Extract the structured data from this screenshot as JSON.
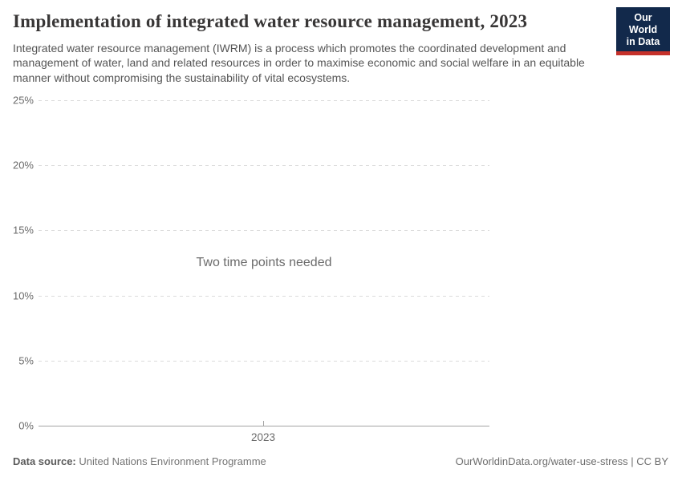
{
  "header": {
    "title": "Implementation of integrated water resource management, 2023",
    "subtitle": "Integrated water resource management (IWRM) is a process which promotes the coordinated development and management of water, land and related resources in order to maximise economic and social welfare in an equitable manner without compromising the sustainability of vital ecosystems.",
    "logo": {
      "line1": "Our World",
      "line2": "in Data",
      "bg_color": "#12294b",
      "stripe_color": "#c5312b"
    }
  },
  "chart_data": {
    "type": "line",
    "title": "Implementation of integrated water resource management, 2023",
    "series": [],
    "empty_state_message": "Two time points needed",
    "x_tick_labels": [
      "2023"
    ],
    "y_tick_labels": [
      "0%",
      "5%",
      "10%",
      "15%",
      "20%",
      "25%"
    ],
    "ylim": [
      0,
      25
    ],
    "xlabel": "",
    "ylabel": "",
    "grid": "horizontal-dashed",
    "legend_position": "none",
    "colors": {
      "gridline": "#dcdcdc",
      "axis_line": "#a3a3a3",
      "tick_label": "#6b6b6b"
    }
  },
  "footer": {
    "data_source_label": "Data source:",
    "data_source_value": "United Nations Environment Programme",
    "attribution": "OurWorldinData.org/water-use-stress | CC BY"
  }
}
